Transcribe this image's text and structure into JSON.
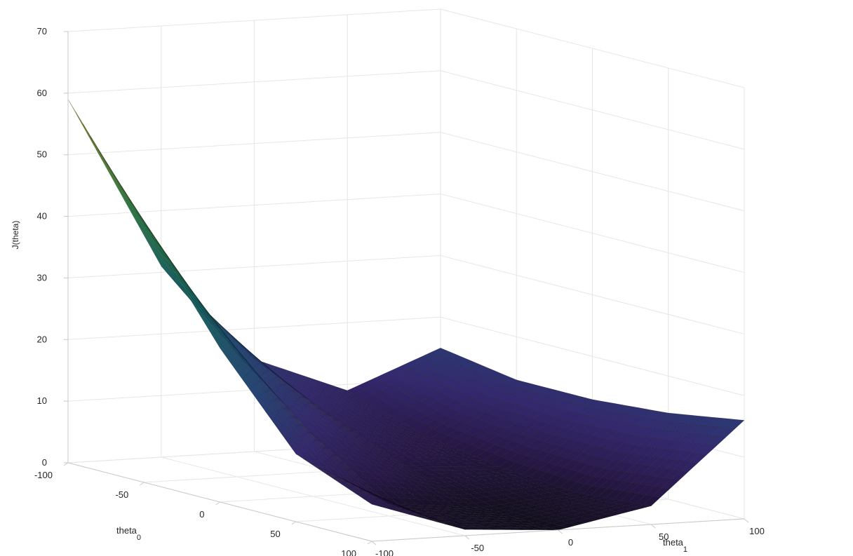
{
  "chart_data": {
    "type": "surface",
    "title": "",
    "xlabel": "theta_0",
    "ylabel": "theta_1",
    "zlabel": "J(theta)",
    "xlabel_main": "theta",
    "xlabel_sub": "0",
    "ylabel_main": "theta",
    "ylabel_sub": "1",
    "xlim": [
      -100,
      100
    ],
    "ylim": [
      -100,
      100
    ],
    "zlim": [
      0,
      70
    ],
    "xticks": [
      -100,
      -50,
      0,
      50,
      100
    ],
    "yticks": [
      -100,
      -50,
      0,
      50,
      100
    ],
    "zticks": [
      0,
      10,
      20,
      30,
      40,
      50,
      60,
      70
    ],
    "grid": true,
    "colormap": "parula-dark",
    "x": [
      -100,
      -50,
      0,
      50,
      100
    ],
    "y": [
      -100,
      -50,
      0,
      50,
      100
    ],
    "z": [
      [
        59,
        31,
        15,
        9,
        15
      ],
      [
        42,
        20,
        9,
        5,
        13
      ],
      [
        25,
        10,
        4,
        3,
        13
      ],
      [
        11,
        2,
        0.5,
        2,
        14
      ],
      [
        6,
        1,
        0,
        3,
        16
      ]
    ]
  }
}
